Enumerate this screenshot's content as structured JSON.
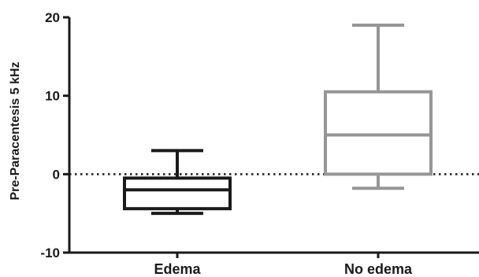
{
  "chart_data": {
    "type": "boxplot",
    "title": "",
    "xlabel": "",
    "ylabel": "Pre-Paracentesis 5 kHz",
    "ylim": [
      -10,
      20
    ],
    "yticks": [
      -10,
      0,
      10,
      20
    ],
    "ytick_labels": [
      "-10",
      "0",
      "10",
      "20"
    ],
    "grid": false,
    "legend": "none",
    "reference_line": {
      "y": 0,
      "style": "dotted",
      "color": "#1a1a1a"
    },
    "categories": [
      "Edema",
      "No edema"
    ],
    "boxes": [
      {
        "category": "Edema",
        "whisker_low": -5.0,
        "q1": -4.4,
        "median": -2.0,
        "q3": -0.5,
        "whisker_high": 3.0,
        "color": "#1a1a1a"
      },
      {
        "category": "No edema",
        "whisker_low": -1.8,
        "q1": 0.0,
        "median": 5.0,
        "q3": 10.5,
        "whisker_high": 19.0,
        "color": "#969696"
      }
    ]
  }
}
